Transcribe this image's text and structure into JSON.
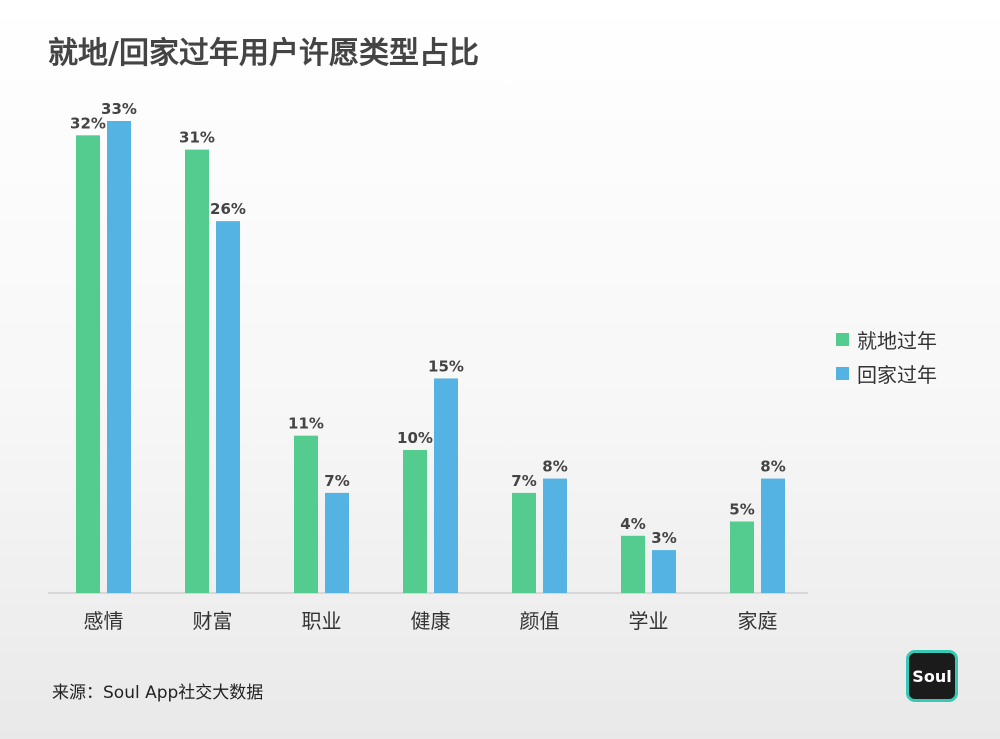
{
  "chart_data": {
    "type": "bar",
    "title": "就地/回家过年用户许愿类型占比",
    "categories": [
      "感情",
      "财富",
      "职业",
      "健康",
      "颜值",
      "学业",
      "家庭"
    ],
    "series": [
      {
        "name": "就地过年",
        "values": [
          32,
          31,
          11,
          10,
          7,
          4,
          5
        ],
        "labels": [
          "32%",
          "31%",
          "11%",
          "10%",
          "7%",
          "4%",
          "5%"
        ],
        "color": "#54cc90"
      },
      {
        "name": "回家过年",
        "values": [
          33,
          26,
          7,
          15,
          8,
          3,
          8
        ],
        "labels": [
          "33%",
          "26%",
          "7%",
          "15%",
          "8%",
          "3%",
          "8%"
        ],
        "color": "#54b3e3"
      }
    ],
    "ylim": [
      0,
      33
    ],
    "xlabel": "",
    "ylabel": "",
    "legend": "right"
  },
  "footer": {
    "source": "来源：Soul App社交大数据",
    "logo_text": "Soul"
  }
}
